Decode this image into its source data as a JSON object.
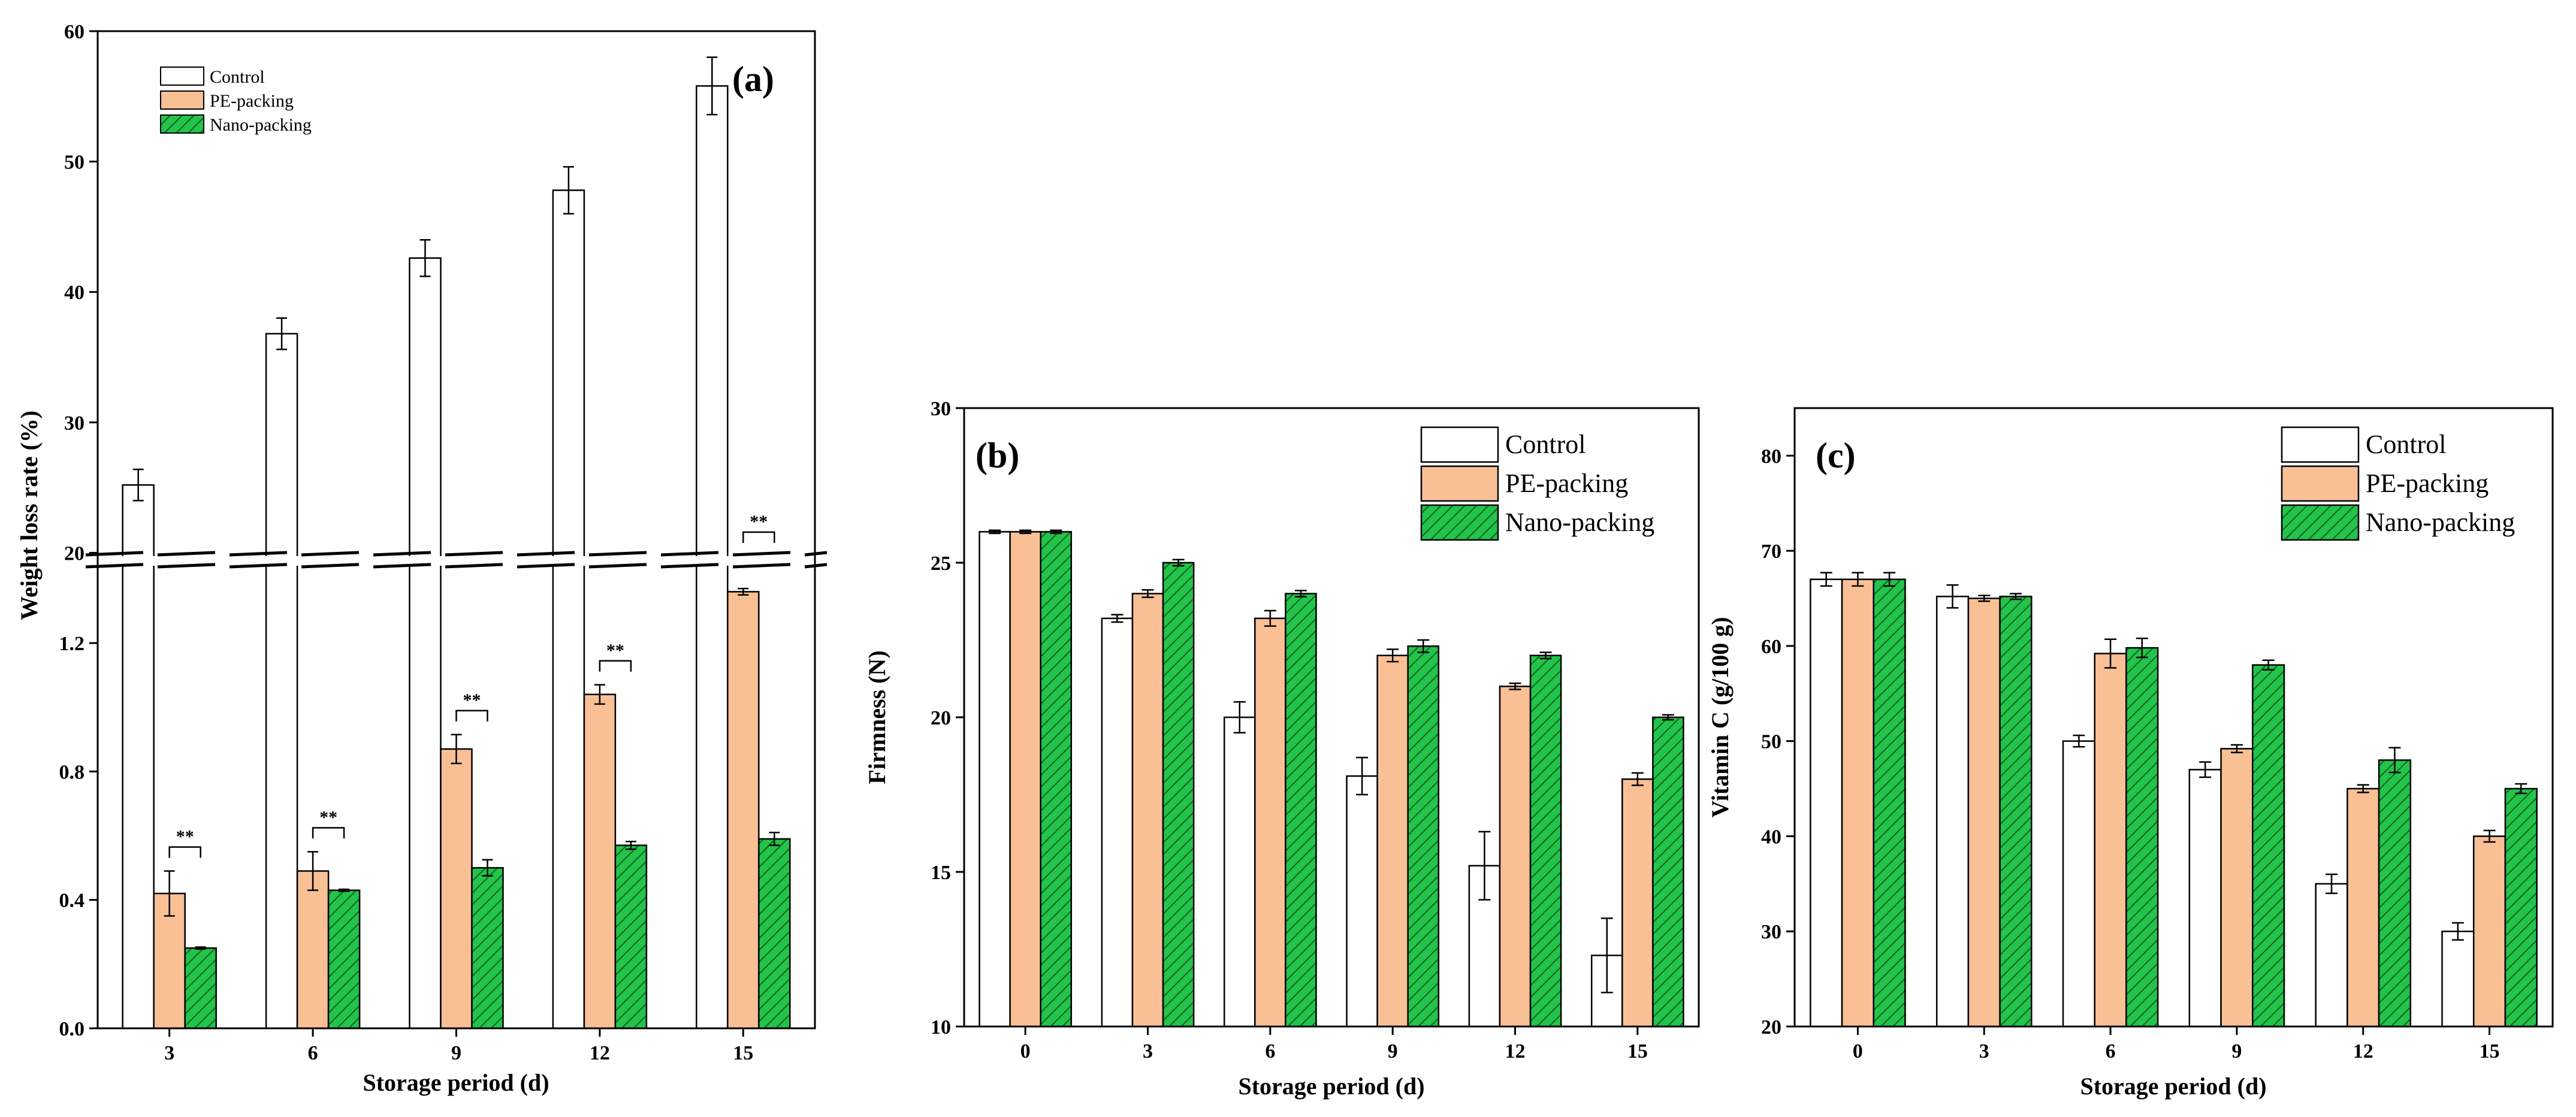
{
  "colors": {
    "control": "#ffffff",
    "pe": "#f9bf95",
    "nano": "#22c44a",
    "nano_hatch": "#155f27",
    "axis": "#000000"
  },
  "legend_labels": [
    "Control",
    "PE-packing",
    "Nano-packing"
  ],
  "significance_label": "**",
  "chart_data": [
    {
      "panel": "(a)",
      "type": "bar",
      "title": "",
      "xlabel": "Storage period (d)",
      "ylabel": "Weight loss rate (%)",
      "categories": [
        "3",
        "6",
        "9",
        "12",
        "15"
      ],
      "axis_break": true,
      "ylim_lower": [
        0,
        1.4
      ],
      "ylim_upper": [
        18,
        60
      ],
      "yticks_lower": [
        "0.0",
        "0.4",
        "0.8",
        "1.2"
      ],
      "yticks_upper": [
        "20",
        "30",
        "40",
        "50",
        "60"
      ],
      "legend_position": "top-left",
      "series": [
        {
          "name": "Control",
          "values": [
            25.2,
            36.8,
            42.6,
            47.8,
            55.8
          ],
          "errors": [
            1.2,
            1.2,
            1.4,
            1.8,
            2.2
          ]
        },
        {
          "name": "PE-packing",
          "values": [
            0.42,
            0.49,
            0.87,
            1.04,
            1.36
          ],
          "errors": [
            0.07,
            0.06,
            0.045,
            0.03,
            0.01
          ]
        },
        {
          "name": "Nano-packing",
          "values": [
            0.25,
            0.43,
            0.5,
            0.57,
            0.59
          ],
          "errors": [
            0.003,
            0.003,
            0.025,
            0.012,
            0.02
          ]
        }
      ],
      "significance": [
        {
          "category": "3",
          "label": "**"
        },
        {
          "category": "6",
          "label": "**"
        },
        {
          "category": "9",
          "label": "**"
        },
        {
          "category": "12",
          "label": "**"
        },
        {
          "category": "15",
          "label": "**"
        }
      ]
    },
    {
      "panel": "(b)",
      "type": "bar",
      "title": "",
      "xlabel": "Storage period (d)",
      "ylabel": "Firmness (N)",
      "categories": [
        "0",
        "3",
        "6",
        "9",
        "12",
        "15"
      ],
      "ylim": [
        10,
        30
      ],
      "yticks": [
        "10",
        "15",
        "20",
        "25",
        "30"
      ],
      "legend_position": "top-right",
      "series": [
        {
          "name": "Control",
          "values": [
            26.0,
            23.2,
            20.0,
            18.1,
            15.2,
            12.3
          ],
          "errors": [
            0.05,
            0.12,
            0.5,
            0.6,
            1.1,
            1.2
          ]
        },
        {
          "name": "PE-packing",
          "values": [
            26.0,
            24.0,
            23.2,
            22.0,
            21.0,
            18.0
          ],
          "errors": [
            0.05,
            0.12,
            0.25,
            0.2,
            0.1,
            0.2
          ]
        },
        {
          "name": "Nano-packing",
          "values": [
            26.0,
            25.0,
            24.0,
            22.3,
            22.0,
            20.0
          ],
          "errors": [
            0.05,
            0.1,
            0.1,
            0.2,
            0.1,
            0.08
          ]
        }
      ]
    },
    {
      "panel": "(c)",
      "type": "bar",
      "title": "",
      "xlabel": "Storage period (d)",
      "ylabel": "Vitamin C (g/100 g)",
      "categories": [
        "0",
        "3",
        "6",
        "9",
        "12",
        "15"
      ],
      "ylim": [
        20,
        85
      ],
      "yticks": [
        "20",
        "30",
        "40",
        "50",
        "60",
        "70",
        "80"
      ],
      "legend_position": "top-right",
      "series": [
        {
          "name": "Control",
          "values": [
            67.0,
            65.2,
            50.0,
            47.0,
            35.0,
            30.0
          ],
          "errors": [
            0.7,
            1.2,
            0.6,
            0.8,
            1.0,
            0.9
          ]
        },
        {
          "name": "PE-packing",
          "values": [
            67.0,
            65.0,
            59.2,
            49.2,
            45.0,
            40.0
          ],
          "errors": [
            0.7,
            0.3,
            1.5,
            0.4,
            0.4,
            0.6
          ]
        },
        {
          "name": "Nano-packing",
          "values": [
            67.0,
            65.2,
            59.8,
            58.0,
            48.0,
            45.0
          ],
          "errors": [
            0.7,
            0.3,
            1.0,
            0.5,
            1.3,
            0.5
          ]
        }
      ]
    }
  ]
}
